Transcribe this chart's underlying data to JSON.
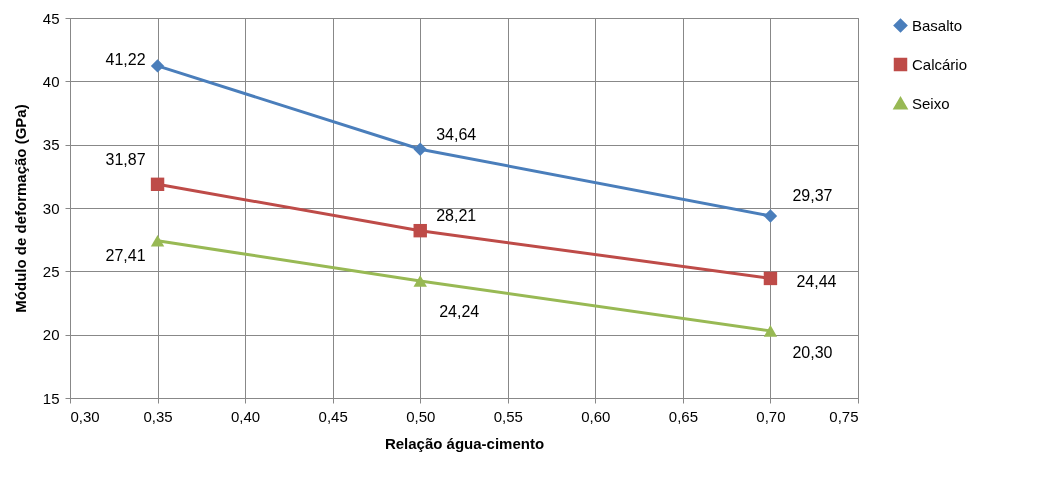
{
  "chart_data": {
    "type": "line",
    "xlabel": "Relação água-cimento",
    "ylabel": "Módulo de deformação (GPa)",
    "x": [
      0.35,
      0.5,
      0.7
    ],
    "series": [
      {
        "name": "Basalto",
        "color": "#4a7ebb",
        "marker": "diamond",
        "values": [
          41.22,
          34.64,
          29.37
        ],
        "value_labels": [
          "41,22",
          "34,64",
          "29,37"
        ]
      },
      {
        "name": "Calcário",
        "color": "#be4b48",
        "marker": "square",
        "values": [
          31.87,
          28.21,
          24.44
        ],
        "value_labels": [
          "31,87",
          "28,21",
          "24,44"
        ]
      },
      {
        "name": "Seixo",
        "color": "#98b954",
        "marker": "triangle",
        "values": [
          27.41,
          24.24,
          20.3
        ],
        "value_labels": [
          "27,41",
          "24,24",
          "20,30"
        ]
      }
    ],
    "xlim": [
      0.3,
      0.75
    ],
    "xticks": [
      {
        "value": 0.3,
        "label": "0,30"
      },
      {
        "value": 0.35,
        "label": "0,35"
      },
      {
        "value": 0.4,
        "label": "0,40"
      },
      {
        "value": 0.45,
        "label": "0,45"
      },
      {
        "value": 0.5,
        "label": "0,50"
      },
      {
        "value": 0.55,
        "label": "0,55"
      },
      {
        "value": 0.6,
        "label": "0,60"
      },
      {
        "value": 0.65,
        "label": "0,65"
      },
      {
        "value": 0.7,
        "label": "0,70"
      },
      {
        "value": 0.75,
        "label": "0,75"
      }
    ],
    "ylim": [
      15,
      45
    ],
    "yticks": [
      15,
      20,
      25,
      30,
      35,
      40,
      45
    ],
    "grid": true,
    "legend": "right",
    "line_style": "solid"
  }
}
